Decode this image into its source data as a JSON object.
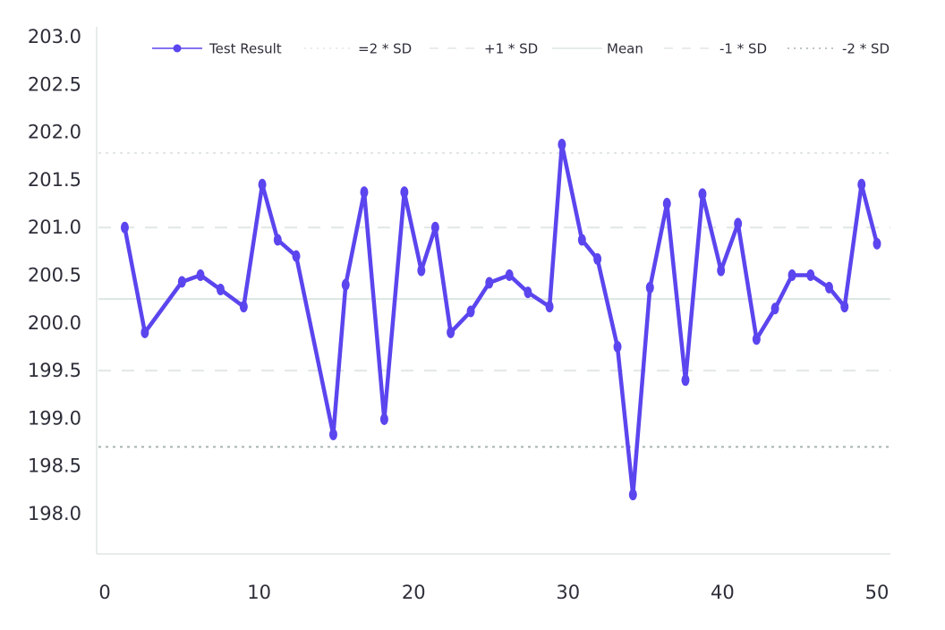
{
  "chart_data": {
    "type": "line",
    "title": "",
    "xlabel": "",
    "ylabel": "",
    "xlim": [
      0,
      50
    ],
    "ylim": [
      197.8,
      203.0
    ],
    "x_ticks": [
      "0",
      "10",
      "20",
      "30",
      "40",
      "50"
    ],
    "y_ticks": [
      "203.0",
      "202.5",
      "202.0",
      "201.5",
      "201.0",
      "200.5",
      "200.0",
      "199.5",
      "199.0",
      "198.5",
      "198.0"
    ],
    "grid": false,
    "legend_position": "top",
    "series": [
      {
        "name": "Test Result",
        "color": "#5b45ee",
        "x": [
          1.3,
          2.6,
          5,
          6.2,
          7.5,
          9,
          10.2,
          11.2,
          12.4,
          14.8,
          15.6,
          16.8,
          18.1,
          19.4,
          20.5,
          21.4,
          22.4,
          23.7,
          24.9,
          26.2,
          27.4,
          28.8,
          29.6,
          30.9,
          31.9,
          33.2,
          34.2,
          35.3,
          36.4,
          37.6,
          38.7,
          39.9,
          41,
          42.2,
          43.4,
          44.5,
          45.7,
          46.9,
          47.9,
          49,
          50
        ],
        "values": [
          201.0,
          199.9,
          200.43,
          200.5,
          200.35,
          200.17,
          201.45,
          200.87,
          200.7,
          198.83,
          200.4,
          201.37,
          198.99,
          201.37,
          200.55,
          201.0,
          199.9,
          200.12,
          200.42,
          200.5,
          200.32,
          200.17,
          201.87,
          200.87,
          200.67,
          199.75,
          198.2,
          200.37,
          201.25,
          199.4,
          201.35,
          200.55,
          201.04,
          199.83,
          200.15,
          200.5,
          200.5,
          200.37,
          200.17,
          201.45,
          200.83
        ]
      },
      {
        "name": "=2 * SD",
        "color": "#e1e7e5",
        "y": 201.78,
        "dash": "dotted"
      },
      {
        "name": "+1 * SD",
        "color": "#e1e7e5",
        "y": 201.0,
        "dash": "dashed"
      },
      {
        "name": "Mean",
        "color": "#dde5e3",
        "y": 200.25,
        "dash": "solid"
      },
      {
        "name": "-1 * SD",
        "color": "#e1e7e5",
        "y": 199.5,
        "dash": "dashed"
      },
      {
        "name": "-2 * SD",
        "color": "#a7b3b1",
        "y": 198.7,
        "dash": "dotted"
      }
    ]
  }
}
